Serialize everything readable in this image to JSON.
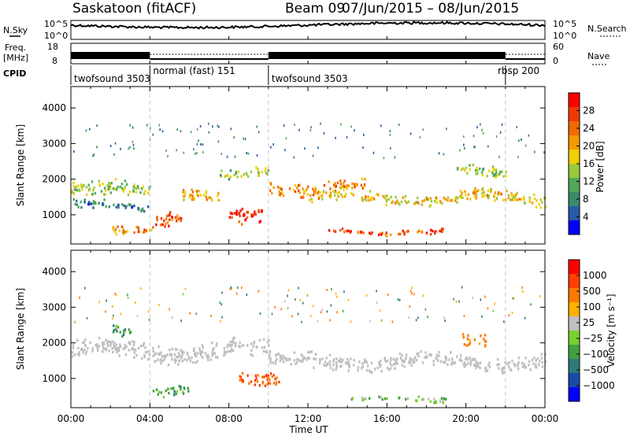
{
  "header": {
    "station": "Saskatoon (fitACF)",
    "beam": "Beam 09",
    "dates": "07/Jun/2015 – 08/Jun/2015"
  },
  "side_labels": {
    "nsky": "N.Sky",
    "freq": "Freq.",
    "freq_unit": "[MHz]",
    "cpid": "CPID",
    "nsearch": "N.Search",
    "nave": "Nave"
  },
  "noise_panel": {
    "left_ticks": [
      "10^5",
      "10^0"
    ],
    "right_ticks": [
      "10^5",
      "10^0"
    ]
  },
  "freq_panel": {
    "left_ticks": [
      "18",
      "8"
    ],
    "right_ticks": [
      "60",
      "0"
    ]
  },
  "cpid_modes": [
    {
      "label": "twofsound 3503",
      "start_hr": 0.0,
      "end_hr": 4.0
    },
    {
      "label": "normal (fast) 151",
      "start_hr": 4.0,
      "end_hr": 10.0
    },
    {
      "label": "twofsound 3503",
      "start_hr": 10.0,
      "end_hr": 22.0
    },
    {
      "label": "rbsp 200",
      "start_hr": 22.0,
      "end_hr": 24.0
    }
  ],
  "x_axis": {
    "label": "Time UT",
    "ticks": [
      "00:00",
      "04:00",
      "08:00",
      "12:00",
      "16:00",
      "20:00",
      "00:00"
    ],
    "range_hr": [
      0,
      24
    ]
  },
  "colors": {
    "power_scale": [
      "#0000ff",
      "#2a5aa8",
      "#3a8a6a",
      "#52a85a",
      "#9acb3c",
      "#f0d000",
      "#f59a00",
      "#f06a00",
      "#ee3a00",
      "#ff0000"
    ],
    "velocity_scale": [
      "#0000ff",
      "#1a4aa8",
      "#2e7a7a",
      "#40a040",
      "#7ad030",
      "#bfbfbf",
      "#ffb000",
      "#ff7a00",
      "#ff4000",
      "#ff0000"
    ]
  },
  "chart_data": [
    {
      "type": "heatmap",
      "title": "",
      "xlabel": "",
      "ylabel": "Slant Range [km]",
      "ylim": [
        180,
        4600
      ],
      "yticks": [
        "1000",
        "2000",
        "3000",
        "4000"
      ],
      "colorbar_label": "Power [dB]",
      "colorbar_ticks": [
        "4",
        "8",
        "12",
        "16",
        "20",
        "24",
        "28"
      ],
      "scatter_bands": [
        {
          "t_start": 0.0,
          "t_end": 4.0,
          "r_center": 1700,
          "r_half": 250,
          "db": 14
        },
        {
          "t_start": 0.0,
          "t_end": 4.0,
          "r_center": 1300,
          "r_half": 150,
          "db": 8
        },
        {
          "t_start": 2.0,
          "t_end": 4.2,
          "r_center": 650,
          "r_half": 150,
          "db": 22
        },
        {
          "t_start": 4.2,
          "t_end": 5.6,
          "r_center": 800,
          "r_half": 250,
          "db": 26
        },
        {
          "t_start": 5.5,
          "t_end": 7.5,
          "r_center": 1600,
          "r_half": 200,
          "db": 20
        },
        {
          "t_start": 7.5,
          "t_end": 10.0,
          "r_center": 2200,
          "r_half": 150,
          "db": 14
        },
        {
          "t_start": 8.0,
          "t_end": 9.8,
          "r_center": 900,
          "r_half": 250,
          "db": 28
        },
        {
          "t_start": 10.0,
          "t_end": 15.0,
          "r_center": 1800,
          "r_half": 200,
          "db": 22
        },
        {
          "t_start": 12.0,
          "t_end": 24.0,
          "r_center": 1500,
          "r_half": 200,
          "db": 18
        },
        {
          "t_start": 13.0,
          "t_end": 19.0,
          "r_center": 550,
          "r_half": 100,
          "db": 26
        },
        {
          "t_start": 19.5,
          "t_end": 22.0,
          "r_center": 2300,
          "r_half": 200,
          "db": 14
        }
      ]
    },
    {
      "type": "heatmap",
      "title": "",
      "xlabel": "Time UT",
      "ylabel": "Slant Range [km]",
      "ylim": [
        180,
        4600
      ],
      "yticks": [
        "1000",
        "2000",
        "3000",
        "4000"
      ],
      "colorbar_label": "Velocity [m s⁻¹]",
      "colorbar_ticks": [
        "1000",
        "500",
        "100",
        "25",
        "−25",
        "−100",
        "−500",
        "−1000"
      ],
      "scatter_bands": [
        {
          "t_start": 0.0,
          "t_end": 10.0,
          "r_center": 1800,
          "r_half": 300,
          "v": 0
        },
        {
          "t_start": 2.0,
          "t_end": 3.0,
          "r_center": 2400,
          "r_half": 200,
          "v": 80
        },
        {
          "t_start": 4.0,
          "t_end": 6.0,
          "r_center": 650,
          "r_half": 150,
          "v": 70
        },
        {
          "t_start": 8.5,
          "t_end": 10.5,
          "r_center": 1100,
          "r_half": 250,
          "v": -300
        },
        {
          "t_start": 10.0,
          "t_end": 24.0,
          "r_center": 1500,
          "r_half": 250,
          "v": 0
        },
        {
          "t_start": 19.8,
          "t_end": 21.0,
          "r_center": 2200,
          "r_half": 200,
          "v": -150
        },
        {
          "t_start": 14.0,
          "t_end": 19.0,
          "r_center": 450,
          "r_half": 80,
          "v": 40
        }
      ]
    }
  ]
}
